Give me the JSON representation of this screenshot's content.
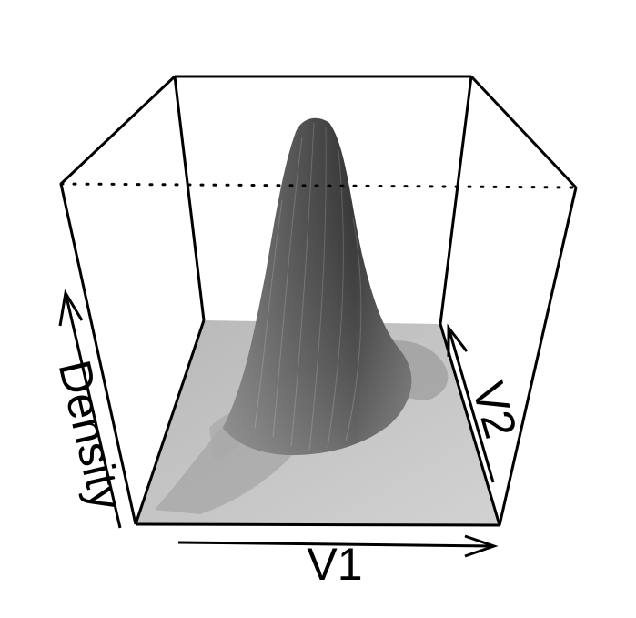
{
  "chart_data": {
    "type": "surface",
    "title": "",
    "xlabel": "V1",
    "ylabel": "V2",
    "zlabel": "Density",
    "grid": false,
    "legend": "none",
    "box": true,
    "ticktype": "simple",
    "shading": "grayscale",
    "colors": {
      "floor": "#c6c6c6",
      "peak": "#3a3a3a",
      "box_lines": "#000000"
    },
    "surface": {
      "shape": "single dominant peak with low-density shoulders",
      "peak_relative_height": 1.0,
      "floor_relative_height": 0.0
    }
  }
}
